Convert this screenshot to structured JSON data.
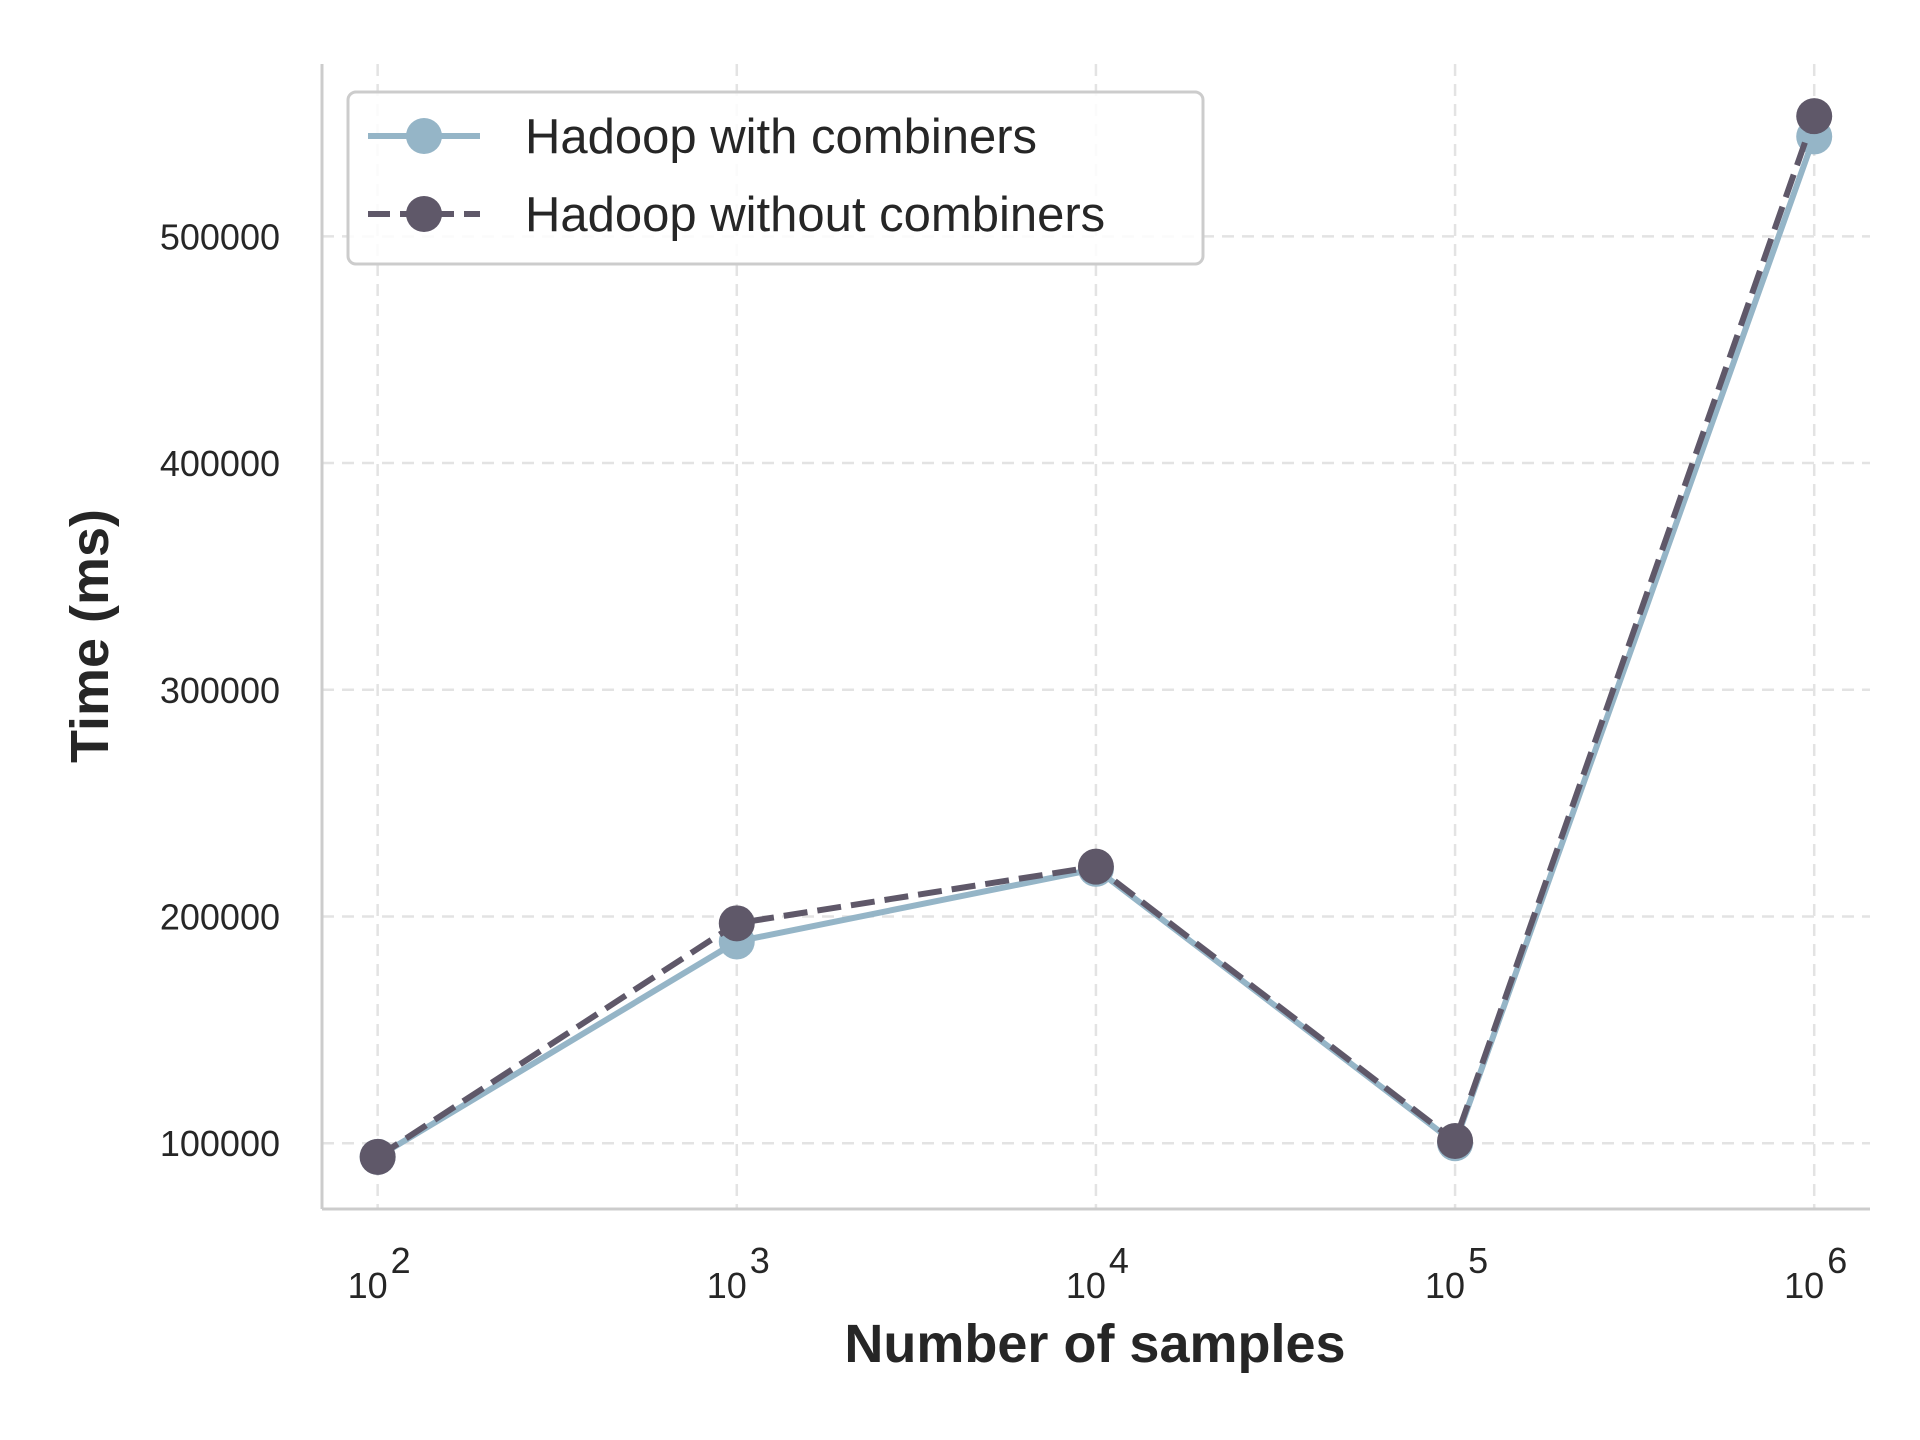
{
  "chart_data": {
    "type": "line",
    "title": "",
    "xlabel": "Number of samples",
    "ylabel": "Time (ms)",
    "x_scale": "log",
    "x": [
      100,
      1000,
      10000,
      100000,
      1000000
    ],
    "x_tick_labels": [
      {
        "base": "10",
        "exp": "2"
      },
      {
        "base": "10",
        "exp": "3"
      },
      {
        "base": "10",
        "exp": "4"
      },
      {
        "base": "10",
        "exp": "5"
      },
      {
        "base": "10",
        "exp": "6"
      }
    ],
    "y_ticks": [
      100000,
      200000,
      300000,
      400000,
      500000
    ],
    "y_tick_labels": [
      "100000",
      "200000",
      "300000",
      "400000",
      "500000"
    ],
    "xlim": [
      70,
      1430000
    ],
    "ylim": [
      71000,
      576000
    ],
    "grid": true,
    "legend_position": "top-left",
    "series": [
      {
        "name": "Hadoop with combiners",
        "values": [
          94000,
          189000,
          221000,
          100000,
          544000
        ],
        "color": "#95b5c7",
        "line_style": "solid",
        "marker": "circle"
      },
      {
        "name": "Hadoop without combiners",
        "values": [
          94000,
          197000,
          222000,
          101000,
          553000
        ],
        "color": "#5f5869",
        "line_style": "dashed",
        "marker": "circle"
      }
    ]
  }
}
